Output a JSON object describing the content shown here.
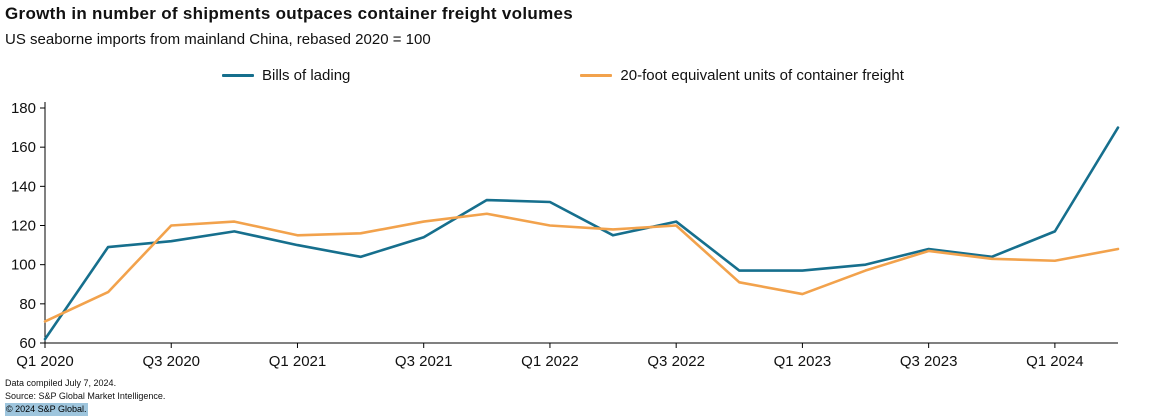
{
  "header": {
    "title": "Growth in number of shipments outpaces container freight volumes",
    "subtitle": "US seaborne imports from mainland China, rebased 2020 = 100"
  },
  "chart_data": {
    "type": "line",
    "x": [
      "Q1 2020",
      "Q2 2020",
      "Q3 2020",
      "Q4 2020",
      "Q1 2021",
      "Q2 2021",
      "Q3 2021",
      "Q4 2021",
      "Q1 2022",
      "Q2 2022",
      "Q3 2022",
      "Q4 2022",
      "Q1 2023",
      "Q2 2023",
      "Q3 2023",
      "Q4 2023",
      "Q1 2024",
      "Q2 2024"
    ],
    "x_tick_labels": [
      "Q1 2020",
      "Q3 2020",
      "Q1 2021",
      "Q3 2021",
      "Q1 2022",
      "Q3 2022",
      "Q1 2023",
      "Q3 2023",
      "Q1 2024"
    ],
    "ylim": [
      60,
      180
    ],
    "yticks": [
      60,
      80,
      100,
      120,
      140,
      160,
      180
    ],
    "grid": false,
    "legend_position": "top",
    "series": [
      {
        "name": "Bills of lading",
        "color": "#166f8d",
        "values": [
          62,
          109,
          112,
          117,
          110,
          104,
          114,
          133,
          132,
          115,
          122,
          97,
          97,
          100,
          108,
          104,
          117,
          170
        ]
      },
      {
        "name": "20-foot equivalent units of container freight",
        "color": "#f2a24c",
        "values": [
          71,
          86,
          120,
          122,
          115,
          116,
          122,
          126,
          120,
          118,
          120,
          91,
          85,
          97,
          107,
          103,
          102,
          108
        ]
      }
    ]
  },
  "footer": {
    "compiled": "Data compiled July 7, 2024.",
    "source": "Source: S&P Global Market Intelligence.",
    "copyright": "© 2024 S&P Global."
  }
}
